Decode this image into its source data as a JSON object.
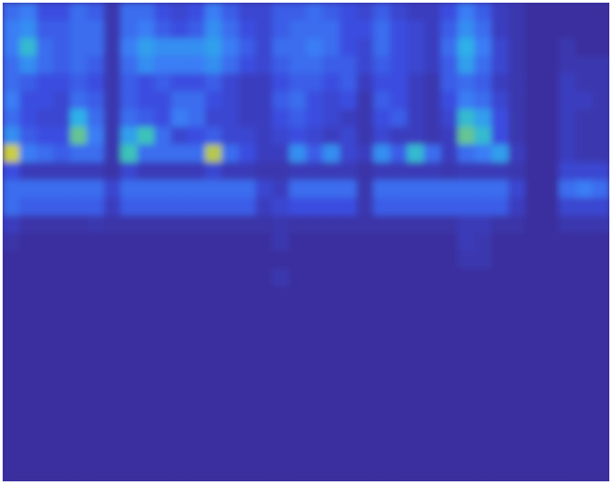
{
  "chart_data": {
    "type": "heatmap",
    "tick_labels": false,
    "zlim": [
      0,
      1
    ],
    "cells": [
      [
        0.3,
        0.35,
        0.2,
        0.2,
        0.3,
        0.25,
        0.05,
        0.3,
        0.3,
        0.2,
        0.15,
        0.2,
        0.35,
        0.25,
        0.15,
        0.15,
        0.25,
        0.25,
        0.3,
        0.25,
        0.2,
        0.15,
        0.25,
        0.15,
        0.1,
        0.1,
        0.2,
        0.35,
        0.25,
        0.1,
        0.05,
        0,
        0,
        0,
        0,
        0
      ],
      [
        0.35,
        0.4,
        0.25,
        0.25,
        0.3,
        0.3,
        0.05,
        0.3,
        0.35,
        0.25,
        0.2,
        0.25,
        0.4,
        0.3,
        0.2,
        0.15,
        0.25,
        0.3,
        0.3,
        0.3,
        0.2,
        0.2,
        0.3,
        0.2,
        0.15,
        0.1,
        0.25,
        0.4,
        0.3,
        0.1,
        0.05,
        0,
        0,
        0,
        0,
        0
      ],
      [
        0.35,
        0.55,
        0.3,
        0.25,
        0.3,
        0.3,
        0.05,
        0.35,
        0.45,
        0.4,
        0.4,
        0.4,
        0.45,
        0.35,
        0.25,
        0.15,
        0.3,
        0.3,
        0.35,
        0.3,
        0.2,
        0.15,
        0.3,
        0.2,
        0.15,
        0.1,
        0.3,
        0.5,
        0.35,
        0.15,
        0.05,
        0,
        0,
        0.05,
        0,
        0
      ],
      [
        0.3,
        0.4,
        0.3,
        0.25,
        0.3,
        0.25,
        0.05,
        0.3,
        0.4,
        0.35,
        0.35,
        0.35,
        0.4,
        0.3,
        0.2,
        0.15,
        0.25,
        0.3,
        0.3,
        0.25,
        0.25,
        0.15,
        0.25,
        0.2,
        0.15,
        0.1,
        0.25,
        0.45,
        0.3,
        0.15,
        0.05,
        0,
        0,
        0.05,
        0.05,
        0.05
      ],
      [
        0.3,
        0.25,
        0.2,
        0.2,
        0.25,
        0.2,
        0.05,
        0.25,
        0.2,
        0.25,
        0.2,
        0.2,
        0.25,
        0.15,
        0.1,
        0.1,
        0.2,
        0.25,
        0.25,
        0.2,
        0.25,
        0.1,
        0.2,
        0.2,
        0.1,
        0.05,
        0.25,
        0.3,
        0.25,
        0.1,
        0.05,
        0,
        0,
        0.1,
        0.05,
        0.05
      ],
      [
        0.35,
        0.2,
        0.2,
        0.15,
        0.3,
        0.25,
        0.05,
        0.25,
        0.2,
        0.2,
        0.3,
        0.3,
        0.2,
        0.15,
        0.1,
        0.1,
        0.25,
        0.3,
        0.2,
        0.15,
        0.2,
        0.05,
        0.25,
        0.2,
        0.1,
        0.05,
        0.2,
        0.35,
        0.3,
        0.15,
        0.05,
        0,
        0,
        0.1,
        0.1,
        0.05
      ],
      [
        0.3,
        0.2,
        0.15,
        0.15,
        0.5,
        0.3,
        0.05,
        0.3,
        0.25,
        0.2,
        0.35,
        0.3,
        0.15,
        0.15,
        0.1,
        0.1,
        0.2,
        0.25,
        0.2,
        0.15,
        0.1,
        0.05,
        0.2,
        0.25,
        0.1,
        0.05,
        0.15,
        0.55,
        0.45,
        0.2,
        0.05,
        0,
        0,
        0.1,
        0.05,
        0.05
      ],
      [
        0.4,
        0.25,
        0.2,
        0.2,
        0.65,
        0.35,
        0.05,
        0.45,
        0.6,
        0.3,
        0.15,
        0.2,
        0.25,
        0.15,
        0.15,
        0.1,
        0.15,
        0.2,
        0.15,
        0.1,
        0.15,
        0.05,
        0.15,
        0.1,
        0.1,
        0.05,
        0.1,
        0.65,
        0.55,
        0.2,
        0.05,
        0,
        0,
        0.1,
        0.05,
        0.05
      ],
      [
        0.8,
        0.35,
        0.3,
        0.25,
        0.3,
        0.3,
        0.05,
        0.6,
        0.3,
        0.3,
        0.3,
        0.3,
        0.75,
        0.3,
        0.2,
        0.1,
        0.1,
        0.4,
        0.25,
        0.4,
        0.15,
        0.1,
        0.4,
        0.25,
        0.55,
        0.3,
        0.1,
        0.3,
        0.35,
        0.45,
        0.1,
        0,
        0,
        0.1,
        0.05,
        0.05
      ],
      [
        0.2,
        0.08,
        0.08,
        0.08,
        0.08,
        0.08,
        0.03,
        0.15,
        0.08,
        0.08,
        0.08,
        0.08,
        0.15,
        0.08,
        0.08,
        0.05,
        0.05,
        0.08,
        0.08,
        0.08,
        0.08,
        0.03,
        0.08,
        0.08,
        0.08,
        0.08,
        0.05,
        0.08,
        0.08,
        0.08,
        0.05,
        0,
        0,
        0.15,
        0.15,
        0.15
      ],
      [
        0.3,
        0.3,
        0.3,
        0.3,
        0.3,
        0.3,
        0.15,
        0.3,
        0.3,
        0.3,
        0.3,
        0.3,
        0.3,
        0.3,
        0.3,
        0.15,
        0.1,
        0.3,
        0.3,
        0.3,
        0.3,
        0.05,
        0.3,
        0.3,
        0.3,
        0.3,
        0.3,
        0.3,
        0.3,
        0.3,
        0.15,
        0,
        0,
        0.3,
        0.35,
        0.3
      ],
      [
        0.3,
        0.25,
        0.25,
        0.25,
        0.25,
        0.25,
        0.1,
        0.25,
        0.25,
        0.25,
        0.25,
        0.25,
        0.25,
        0.25,
        0.25,
        0.1,
        0.15,
        0.2,
        0.2,
        0.2,
        0.2,
        0.05,
        0.25,
        0.25,
        0.25,
        0.25,
        0.25,
        0.25,
        0.25,
        0.25,
        0.1,
        0,
        0,
        0.15,
        0.15,
        0.15
      ],
      [
        0.1,
        0.03,
        0.03,
        0.03,
        0.03,
        0.05,
        0.03,
        0.03,
        0.03,
        0.03,
        0.03,
        0.03,
        0.03,
        0.03,
        0.03,
        0.03,
        0.05,
        0.03,
        0.03,
        0.03,
        0.03,
        0.03,
        0.03,
        0.03,
        0.03,
        0.03,
        0.03,
        0.08,
        0.08,
        0.03,
        0.03,
        0,
        0,
        0.05,
        0.05,
        0.05
      ],
      [
        0.03,
        0,
        0,
        0,
        0,
        0,
        0,
        0,
        0,
        0,
        0,
        0,
        0,
        0,
        0,
        0,
        0.05,
        0,
        0,
        0,
        0,
        0,
        0,
        0,
        0,
        0,
        0,
        0.08,
        0.05,
        0,
        0,
        0,
        0,
        0,
        0,
        0
      ],
      [
        0,
        0,
        0,
        0,
        0,
        0,
        0,
        0,
        0,
        0,
        0,
        0,
        0,
        0,
        0,
        0,
        0,
        0,
        0,
        0,
        0,
        0,
        0,
        0,
        0,
        0,
        0,
        0.05,
        0.05,
        0,
        0,
        0,
        0,
        0,
        0,
        0
      ],
      [
        0,
        0,
        0,
        0,
        0,
        0,
        0,
        0,
        0,
        0,
        0,
        0,
        0,
        0,
        0,
        0,
        0.05,
        0,
        0,
        0,
        0,
        0,
        0,
        0,
        0,
        0,
        0,
        0,
        0,
        0,
        0,
        0,
        0,
        0,
        0,
        0
      ],
      [
        0,
        0,
        0,
        0,
        0,
        0,
        0,
        0,
        0,
        0,
        0,
        0,
        0,
        0,
        0,
        0,
        0,
        0,
        0,
        0,
        0,
        0,
        0,
        0,
        0,
        0,
        0,
        0,
        0,
        0,
        0,
        0,
        0,
        0,
        0,
        0
      ],
      [
        0,
        0,
        0,
        0,
        0,
        0,
        0,
        0,
        0,
        0,
        0,
        0,
        0,
        0,
        0,
        0,
        0,
        0,
        0,
        0,
        0,
        0,
        0,
        0,
        0,
        0,
        0,
        0,
        0,
        0,
        0,
        0,
        0,
        0,
        0,
        0
      ],
      [
        0,
        0,
        0,
        0,
        0,
        0,
        0,
        0,
        0,
        0,
        0,
        0,
        0,
        0,
        0,
        0,
        0,
        0,
        0,
        0,
        0,
        0,
        0,
        0,
        0,
        0,
        0,
        0,
        0,
        0,
        0,
        0,
        0,
        0,
        0,
        0
      ],
      [
        0,
        0,
        0,
        0,
        0,
        0,
        0,
        0,
        0,
        0,
        0,
        0,
        0,
        0,
        0,
        0,
        0,
        0,
        0,
        0,
        0,
        0,
        0,
        0,
        0,
        0,
        0,
        0,
        0,
        0,
        0,
        0,
        0,
        0,
        0,
        0
      ],
      [
        0,
        0,
        0,
        0,
        0,
        0,
        0,
        0,
        0,
        0,
        0,
        0,
        0,
        0,
        0,
        0,
        0,
        0,
        0,
        0,
        0,
        0,
        0,
        0,
        0,
        0,
        0,
        0,
        0,
        0,
        0,
        0,
        0,
        0,
        0,
        0
      ],
      [
        0,
        0,
        0,
        0,
        0,
        0,
        0,
        0,
        0,
        0,
        0,
        0,
        0,
        0,
        0,
        0,
        0,
        0,
        0,
        0,
        0,
        0,
        0,
        0,
        0,
        0,
        0,
        0,
        0,
        0,
        0,
        0,
        0,
        0,
        0,
        0
      ],
      [
        0,
        0,
        0,
        0,
        0,
        0,
        0,
        0,
        0,
        0,
        0,
        0,
        0,
        0,
        0,
        0,
        0,
        0,
        0,
        0,
        0,
        0,
        0,
        0,
        0,
        0,
        0,
        0,
        0,
        0,
        0,
        0,
        0,
        0,
        0,
        0
      ],
      [
        0,
        0,
        0,
        0,
        0,
        0,
        0,
        0,
        0,
        0,
        0,
        0,
        0,
        0,
        0,
        0,
        0,
        0,
        0,
        0,
        0,
        0,
        0,
        0,
        0,
        0,
        0,
        0,
        0,
        0,
        0,
        0,
        0,
        0,
        0,
        0
      ],
      [
        0,
        0,
        0,
        0,
        0,
        0,
        0,
        0,
        0,
        0,
        0,
        0,
        0,
        0,
        0,
        0,
        0,
        0,
        0,
        0,
        0,
        0,
        0,
        0,
        0,
        0,
        0,
        0,
        0,
        0,
        0,
        0,
        0,
        0,
        0,
        0
      ],
      [
        0,
        0,
        0,
        0,
        0,
        0,
        0,
        0,
        0,
        0,
        0,
        0,
        0,
        0,
        0,
        0,
        0,
        0,
        0,
        0,
        0,
        0,
        0,
        0,
        0,
        0,
        0,
        0,
        0,
        0,
        0,
        0,
        0,
        0,
        0,
        0
      ],
      [
        0,
        0,
        0,
        0,
        0,
        0,
        0,
        0,
        0,
        0,
        0,
        0,
        0,
        0,
        0,
        0,
        0,
        0,
        0,
        0,
        0,
        0,
        0,
        0,
        0,
        0,
        0,
        0,
        0,
        0,
        0,
        0,
        0,
        0,
        0,
        0
      ]
    ]
  }
}
